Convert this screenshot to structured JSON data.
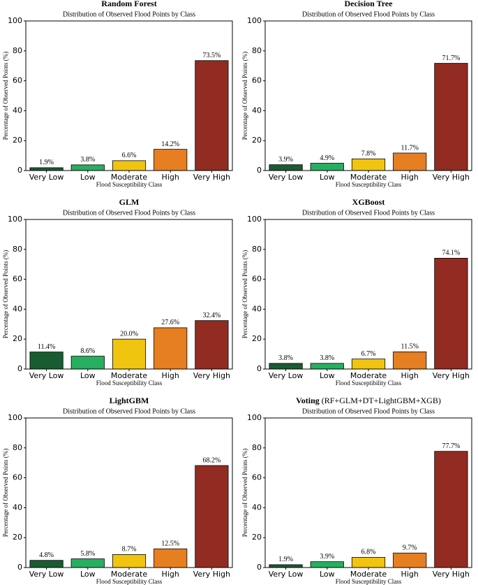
{
  "chart_data": [
    {
      "type": "bar",
      "title": "Random Forest",
      "subtitle": "Distribution of Observed Flood Points by Class",
      "xlabel": "Flood Susceptibility Class",
      "ylabel": "Percentage of Observed Points (%)",
      "categories": [
        "Very Low",
        "Low",
        "Moderate",
        "High",
        "Very High"
      ],
      "values": [
        1.9,
        3.8,
        6.6,
        14.2,
        73.5
      ],
      "value_labels": [
        "1.9%",
        "3.8%",
        "6.6%",
        "14.2%",
        "73.5%"
      ],
      "colors": [
        "#1a5c32",
        "#27ae60",
        "#f1c40f",
        "#e67e22",
        "#922b21"
      ],
      "ylim": [
        0,
        100
      ],
      "yticks": [
        0,
        20,
        40,
        60,
        80,
        100
      ]
    },
    {
      "type": "bar",
      "title": "Decision Tree",
      "subtitle": "Distribution of Observed Flood Points by Class",
      "xlabel": "Flood Susceptibility Class",
      "ylabel": "Percentage of Observed Points (%)",
      "categories": [
        "Very Low",
        "Low",
        "Moderate",
        "High",
        "Very High"
      ],
      "values": [
        3.9,
        4.9,
        7.8,
        11.7,
        71.7
      ],
      "value_labels": [
        "3.9%",
        "4.9%",
        "7.8%",
        "11.7%",
        "71.7%"
      ],
      "colors": [
        "#1a5c32",
        "#27ae60",
        "#f1c40f",
        "#e67e22",
        "#922b21"
      ],
      "ylim": [
        0,
        100
      ],
      "yticks": [
        0,
        20,
        40,
        60,
        80,
        100
      ]
    },
    {
      "type": "bar",
      "title": "GLM",
      "subtitle": "Distribution of Observed Flood Points by Class",
      "xlabel": "Flood Susceptibility Class",
      "ylabel": "Percentage of Observed Points (%)",
      "categories": [
        "Very Low",
        "Low",
        "Moderate",
        "High",
        "Very High"
      ],
      "values": [
        11.4,
        8.6,
        20.0,
        27.6,
        32.4
      ],
      "value_labels": [
        "11.4%",
        "8.6%",
        "20.0%",
        "27.6%",
        "32.4%"
      ],
      "colors": [
        "#1a5c32",
        "#27ae60",
        "#f1c40f",
        "#e67e22",
        "#922b21"
      ],
      "ylim": [
        0,
        100
      ],
      "yticks": [
        0,
        20,
        40,
        60,
        80,
        100
      ]
    },
    {
      "type": "bar",
      "title": "XGBoost",
      "subtitle": "Distribution of Observed Flood Points by Class",
      "xlabel": "Flood Susceptibility Class",
      "ylabel": "Percentage of Observed Points (%)",
      "categories": [
        "Very Low",
        "Low",
        "Moderate",
        "High",
        "Very High"
      ],
      "values": [
        3.8,
        3.8,
        6.7,
        11.5,
        74.1
      ],
      "value_labels": [
        "3.8%",
        "3.8%",
        "6.7%",
        "11.5%",
        "74.1%"
      ],
      "colors": [
        "#1a5c32",
        "#27ae60",
        "#f1c40f",
        "#e67e22",
        "#922b21"
      ],
      "ylim": [
        0,
        100
      ],
      "yticks": [
        0,
        20,
        40,
        60,
        80,
        100
      ]
    },
    {
      "type": "bar",
      "title": "LightGBM",
      "subtitle": "Distribution of Observed Flood Points by Class",
      "xlabel": "Flood Susceptibility Class",
      "ylabel": "Percentage of Observed Points (%)",
      "categories": [
        "Very Low",
        "Low",
        "Moderate",
        "High",
        "Very High"
      ],
      "values": [
        4.8,
        5.8,
        8.7,
        12.5,
        68.2
      ],
      "value_labels": [
        "4.8%",
        "5.8%",
        "8.7%",
        "12.5%",
        "68.2%"
      ],
      "colors": [
        "#1a5c32",
        "#27ae60",
        "#f1c40f",
        "#e67e22",
        "#922b21"
      ],
      "ylim": [
        0,
        100
      ],
      "yticks": [
        0,
        20,
        40,
        60,
        80,
        100
      ]
    },
    {
      "type": "bar",
      "title": "Voting",
      "title_note": "(RF+GLM+DT+LightGBM+XGB)",
      "subtitle": "Distribution of Observed Flood Points by Class",
      "xlabel": "Flood Susceptibility Class",
      "ylabel": "Percentage of Observed Points (%)",
      "categories": [
        "Very Low",
        "Low",
        "Moderate",
        "High",
        "Very High"
      ],
      "values": [
        1.9,
        3.9,
        6.8,
        9.7,
        77.7
      ],
      "value_labels": [
        "1.9%",
        "3.9%",
        "6.8%",
        "9.7%",
        "77.7%"
      ],
      "colors": [
        "#1a5c32",
        "#27ae60",
        "#f1c40f",
        "#e67e22",
        "#922b21"
      ],
      "ylim": [
        0,
        100
      ],
      "yticks": [
        0,
        20,
        40,
        60,
        80,
        100
      ]
    }
  ]
}
